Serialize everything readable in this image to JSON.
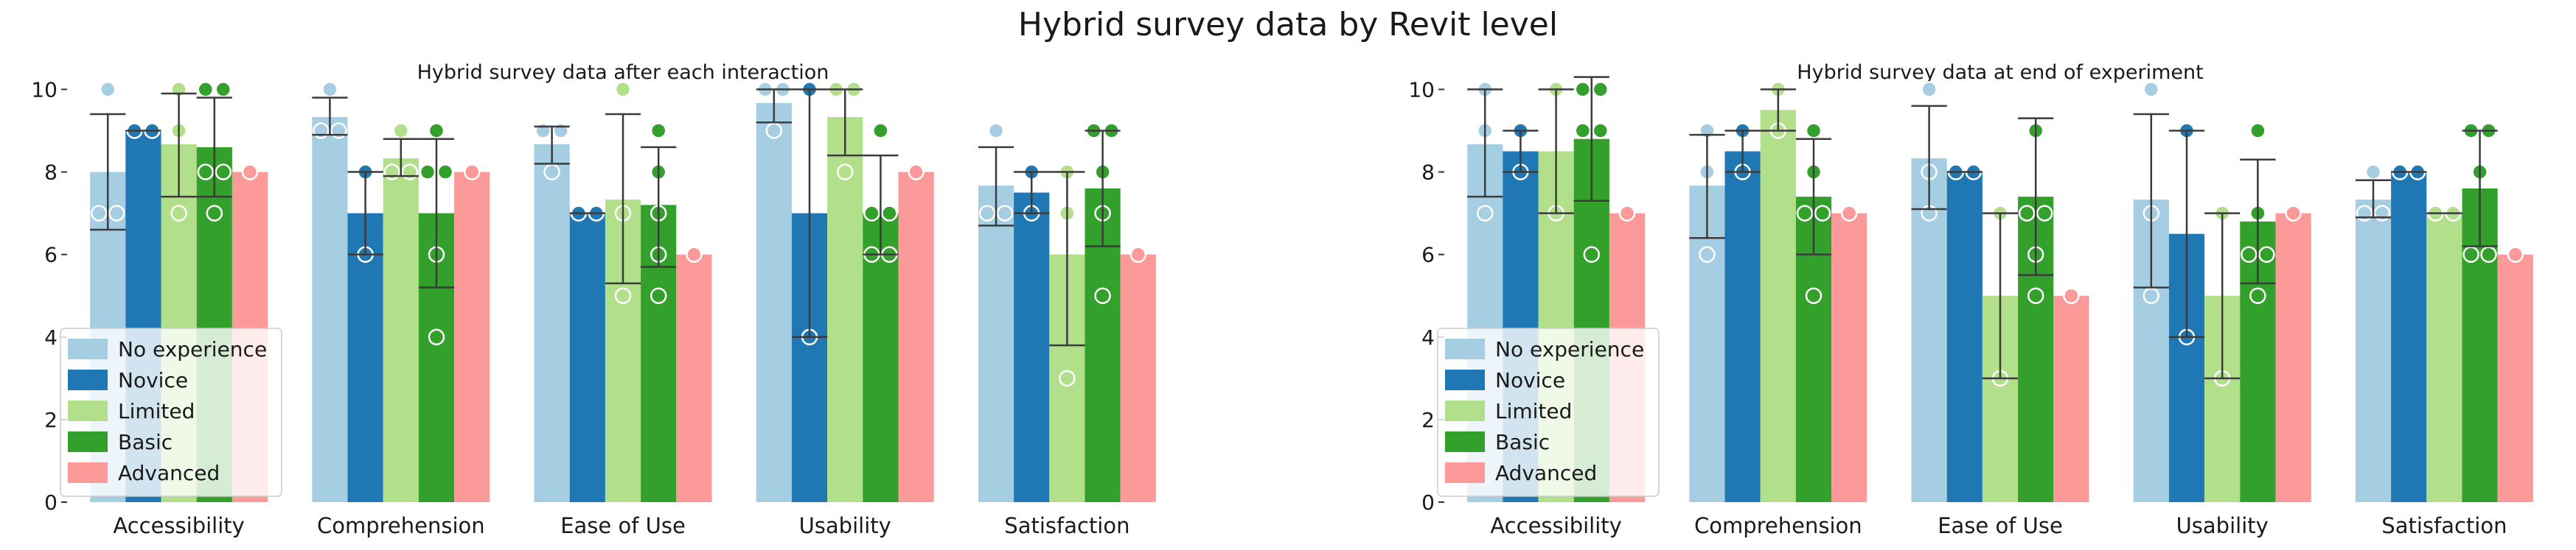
{
  "suptitle": "Hybrid survey data by Revit level",
  "colors": {
    "No experience": "#a6cee3",
    "Novice": "#1f78b4",
    "Limited": "#b2df8a",
    "Basic": "#33a02c",
    "Advanced": "#fb9a99"
  },
  "chart_data": [
    {
      "type": "bar",
      "title": "Hybrid survey data after each interaction",
      "xlabel": "",
      "ylabel": "",
      "ylim": [
        0,
        10.4
      ],
      "yticks": [
        0,
        2,
        4,
        6,
        8,
        10
      ],
      "categories": [
        "Accessibility",
        "Comprehension",
        "Ease of Use",
        "Usability",
        "Satisfaction"
      ],
      "legend": {
        "position": "lower-left",
        "entries": [
          "No experience",
          "Novice",
          "Limited",
          "Basic",
          "Advanced"
        ]
      },
      "series": [
        {
          "name": "No experience",
          "values": [
            8.0,
            9.33,
            8.67,
            9.67,
            7.67
          ],
          "error": [
            [
              6.6,
              9.4
            ],
            [
              8.9,
              9.8
            ],
            [
              8.2,
              9.1
            ],
            [
              9.2,
              10.0
            ],
            [
              6.7,
              8.6
            ]
          ],
          "points": [
            [
              7,
              7,
              10
            ],
            [
              9,
              9,
              10
            ],
            [
              9,
              9,
              8
            ],
            [
              10,
              10,
              9
            ],
            [
              7,
              7,
              9
            ]
          ]
        },
        {
          "name": "Novice",
          "values": [
            9.0,
            7.0,
            7.0,
            7.0,
            7.5
          ],
          "error": [
            [
              9.0,
              9.0
            ],
            [
              6.0,
              8.0
            ],
            [
              7.0,
              7.0
            ],
            [
              4.0,
              10.0
            ],
            [
              7.0,
              8.0
            ]
          ],
          "points": [
            [
              9,
              9
            ],
            [
              8,
              6
            ],
            [
              7,
              7
            ],
            [
              10,
              4
            ],
            [
              8,
              7
            ]
          ]
        },
        {
          "name": "Limited",
          "values": [
            8.67,
            8.33,
            7.33,
            9.33,
            6.0
          ],
          "error": [
            [
              7.4,
              9.9
            ],
            [
              7.9,
              8.8
            ],
            [
              5.3,
              9.4
            ],
            [
              8.4,
              10.0
            ],
            [
              3.8,
              8.0
            ]
          ],
          "points": [
            [
              10,
              7,
              9
            ],
            [
              8,
              8,
              9
            ],
            [
              10,
              7,
              5
            ],
            [
              10,
              10,
              8
            ],
            [
              3,
              7,
              8
            ]
          ]
        },
        {
          "name": "Basic",
          "values": [
            8.6,
            7.0,
            7.2,
            7.0,
            7.6
          ],
          "error": [
            [
              7.4,
              9.8
            ],
            [
              5.2,
              8.8
            ],
            [
              5.7,
              8.6
            ],
            [
              6.0,
              8.4
            ],
            [
              6.2,
              9.0
            ]
          ],
          "points": [
            [
              10,
              10,
              7,
              8,
              8
            ],
            [
              9,
              8,
              6,
              4,
              8
            ],
            [
              9,
              8,
              6,
              5,
              7
            ],
            [
              9,
              7,
              6,
              6,
              7
            ],
            [
              9,
              9,
              8,
              7,
              5
            ]
          ]
        },
        {
          "name": "Advanced",
          "values": [
            8.0,
            8.0,
            6.0,
            8.0,
            6.0
          ],
          "error": null,
          "points": [
            [
              8
            ],
            [
              8
            ],
            [
              6
            ],
            [
              8
            ],
            [
              6
            ]
          ]
        }
      ]
    },
    {
      "type": "bar",
      "title": "Hybrid survey data at end of experiment",
      "xlabel": "",
      "ylabel": "",
      "ylim": [
        0,
        10.4
      ],
      "yticks": [
        0,
        2,
        4,
        6,
        8,
        10
      ],
      "categories": [
        "Accessibility",
        "Comprehension",
        "Ease of Use",
        "Usability",
        "Satisfaction"
      ],
      "legend": {
        "position": "lower-left",
        "entries": [
          "No experience",
          "Novice",
          "Limited",
          "Basic",
          "Advanced"
        ]
      },
      "series": [
        {
          "name": "No experience",
          "values": [
            8.67,
            7.67,
            8.33,
            7.33,
            7.33
          ],
          "error": [
            [
              7.4,
              10.0
            ],
            [
              6.4,
              8.9
            ],
            [
              7.1,
              9.6
            ],
            [
              5.2,
              9.4
            ],
            [
              6.9,
              7.8
            ]
          ],
          "points": [
            [
              10,
              9,
              7
            ],
            [
              9,
              8,
              6
            ],
            [
              10,
              8,
              7
            ],
            [
              10,
              7,
              5
            ],
            [
              7,
              7,
              8
            ]
          ]
        },
        {
          "name": "Novice",
          "values": [
            8.5,
            8.5,
            8.0,
            6.5,
            8.0
          ],
          "error": [
            [
              8.0,
              9.0
            ],
            [
              8.0,
              9.0
            ],
            [
              8.0,
              8.0
            ],
            [
              4.0,
              9.0
            ],
            [
              8.0,
              8.0
            ]
          ],
          "points": [
            [
              9,
              8
            ],
            [
              9,
              8
            ],
            [
              8,
              8
            ],
            [
              9,
              4
            ],
            [
              8,
              8
            ]
          ]
        },
        {
          "name": "Limited",
          "values": [
            8.5,
            9.5,
            5.0,
            5.0,
            7.0
          ],
          "error": [
            [
              7.0,
              10.0
            ],
            [
              9.0,
              10.0
            ],
            [
              3.0,
              7.0
            ],
            [
              3.0,
              7.0
            ],
            [
              7.0,
              7.0
            ]
          ],
          "points": [
            [
              10,
              7
            ],
            [
              10,
              9
            ],
            [
              7,
              3
            ],
            [
              7,
              3
            ],
            [
              7,
              7
            ]
          ]
        },
        {
          "name": "Basic",
          "values": [
            8.8,
            7.4,
            7.4,
            6.8,
            7.6
          ],
          "error": [
            [
              7.3,
              10.3
            ],
            [
              6.0,
              8.8
            ],
            [
              5.5,
              9.3
            ],
            [
              5.3,
              8.3
            ],
            [
              6.2,
              9.0
            ]
          ],
          "points": [
            [
              10,
              10,
              9,
              9,
              6
            ],
            [
              9,
              8,
              7,
              7,
              5
            ],
            [
              9,
              7,
              7,
              6,
              5
            ],
            [
              9,
              7,
              6,
              6,
              5
            ],
            [
              9,
              9,
              8,
              6,
              6
            ]
          ]
        },
        {
          "name": "Advanced",
          "values": [
            7.0,
            7.0,
            5.0,
            7.0,
            6.0
          ],
          "error": null,
          "points": [
            [
              7
            ],
            [
              7
            ],
            [
              5
            ],
            [
              7
            ],
            [
              6
            ]
          ]
        }
      ]
    }
  ]
}
